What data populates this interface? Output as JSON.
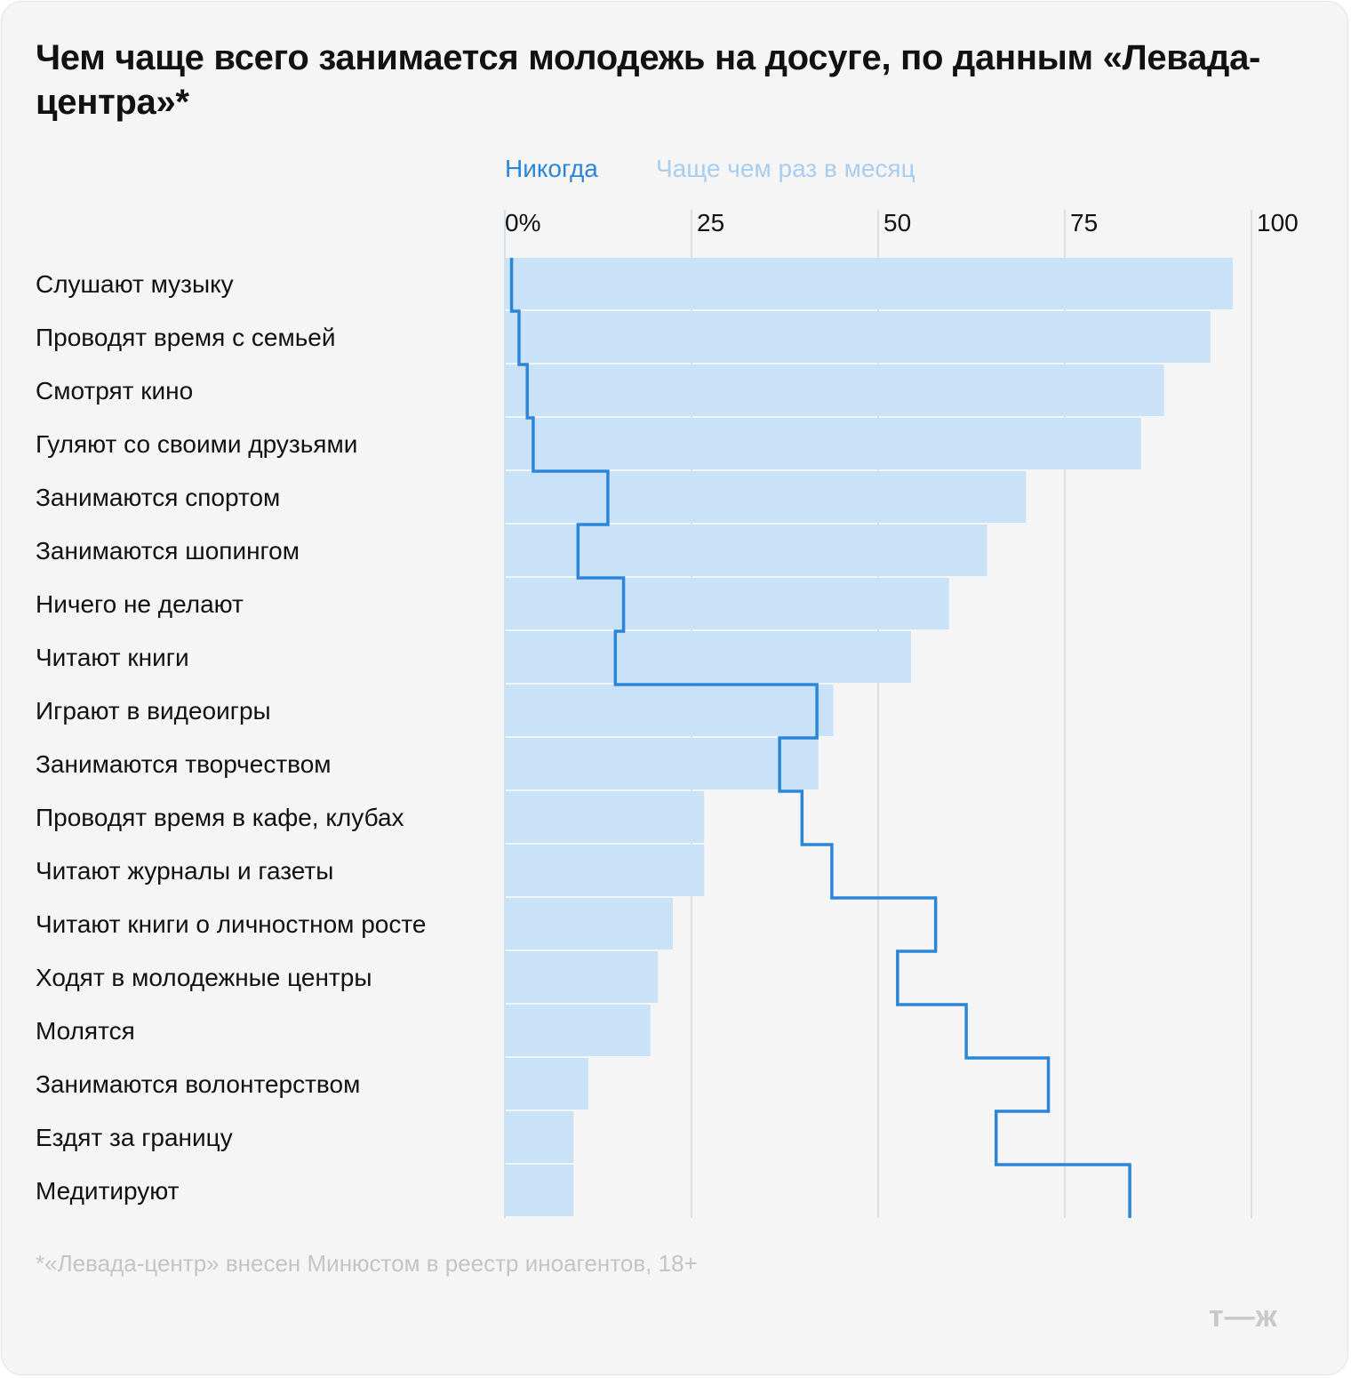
{
  "title": "Чем чаще всего занимается молодежь на досуге, по данным «Левада-центра»*",
  "legend": {
    "never": "Никогда",
    "often": "Чаще чем раз в месяц"
  },
  "colors": {
    "never_line": "#2b86d8",
    "often_bar": "#c9e2f8",
    "grid": "#cfd8e0",
    "background": "#f5f5f5"
  },
  "chart_data": {
    "type": "bar",
    "orientation": "horizontal",
    "title": "Чем чаще всего занимается молодежь на досуге, по данным «Левада-центра»*",
    "x_tick_labels": [
      "0%",
      "25",
      "50",
      "75",
      "100"
    ],
    "x_ticks": [
      0,
      25,
      50,
      75,
      100
    ],
    "xlim": [
      0,
      100
    ],
    "legend_position": "top",
    "grid": true,
    "categories": [
      "Слушают музыку",
      "Проводят время с семьей",
      "Смотрят кино",
      "Гуляют со своими друзьями",
      "Занимаются спортом",
      "Занимаются шопингом",
      "Ничего не делают",
      "Читают книги",
      "Играют в видеоигры",
      "Занимаются творчеством",
      "Проводят время в кафе, клубах",
      "Читают журналы и газеты",
      "Читают книги о личностном росте",
      "Ходят в молодежные центры",
      "Молятся",
      "Занимаются волонтерством",
      "Ездят за границу",
      "Медитируют"
    ],
    "series": [
      {
        "name": "Чаще чем раз в месяц",
        "chart_type": "bar",
        "values": [
          97.5,
          94.5,
          88.3,
          85.2,
          69.8,
          64.6,
          59.5,
          54.4,
          44.0,
          42.0,
          26.7,
          26.7,
          22.5,
          20.5,
          19.5,
          11.2,
          9.2,
          9.2
        ]
      },
      {
        "name": "Никогда",
        "chart_type": "step-line",
        "values": [
          0.9,
          1.9,
          3.0,
          3.8,
          13.8,
          9.8,
          15.9,
          14.8,
          41.8,
          36.8,
          39.8,
          43.8,
          57.7,
          52.6,
          61.8,
          72.8,
          65.8,
          83.7
        ]
      }
    ]
  },
  "footnote": "*«Левада-центр» внесен Минюстом в реестр иноагентов, 18+",
  "logo": "т—ж"
}
